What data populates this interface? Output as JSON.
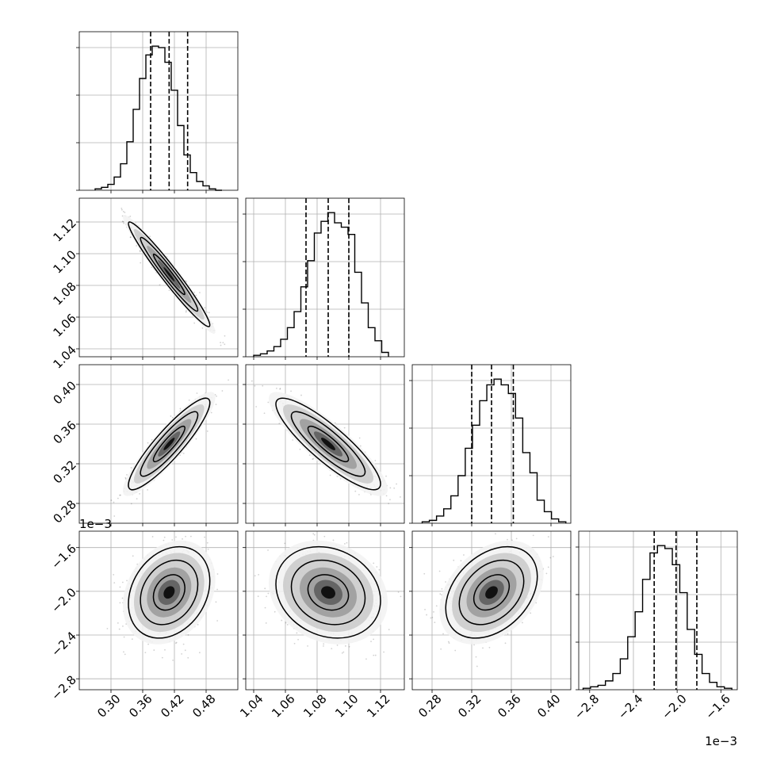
{
  "chart_data": {
    "type": "corner",
    "num_parameters": 4,
    "grid": true,
    "offset_label": "1e−3",
    "parameters": [
      {
        "range": [
          0.24,
          0.54
        ],
        "ticks": [
          0.3,
          0.36,
          0.42,
          0.48
        ],
        "tick_labels": [
          "0.30",
          "0.36",
          "0.42",
          "0.48"
        ],
        "quantiles": [
          0.375,
          0.41,
          0.445
        ],
        "hist_range": [
          0.27,
          0.51
        ],
        "hist_counts": [
          1,
          2,
          4,
          9,
          18,
          33,
          55,
          76,
          92,
          98,
          97,
          87,
          68,
          44,
          24,
          12,
          6,
          3,
          1,
          0
        ]
      },
      {
        "range": [
          1.035,
          1.135
        ],
        "ticks": [
          1.04,
          1.06,
          1.08,
          1.1,
          1.12
        ],
        "tick_labels": [
          "1.04",
          "1.06",
          "1.08",
          "1.10",
          "1.12"
        ],
        "quantiles": [
          1.073,
          1.087,
          1.1
        ],
        "hist_range": [
          1.04,
          1.125
        ],
        "hist_counts": [
          1,
          2,
          4,
          7,
          12,
          20,
          31,
          48,
          66,
          85,
          93,
          99,
          92,
          89,
          84,
          58,
          37,
          20,
          11,
          3
        ]
      },
      {
        "range": [
          0.26,
          0.42
        ],
        "ticks": [
          0.28,
          0.32,
          0.36,
          0.4
        ],
        "tick_labels": [
          "0.28",
          "0.32",
          "0.36",
          "0.40"
        ],
        "quantiles": [
          0.32,
          0.34,
          0.362
        ],
        "hist_range": [
          0.27,
          0.415
        ],
        "hist_counts": [
          1,
          2,
          5,
          10,
          19,
          33,
          52,
          68,
          85,
          96,
          100,
          96,
          90,
          73,
          49,
          35,
          16,
          8,
          3,
          1
        ]
      },
      {
        "range": [
          -2.9,
          -1.45
        ],
        "ticks": [
          -2.8,
          -2.4,
          -2.0,
          -1.6
        ],
        "tick_labels": [
          "−2.8",
          "−2.4",
          "−2.0",
          "−1.6"
        ],
        "quantiles": [
          -2.21,
          -2.01,
          -1.82
        ],
        "hist_range": [
          -2.86,
          -1.5
        ],
        "hist_counts": [
          1,
          2,
          3,
          6,
          11,
          21,
          36,
          53,
          75,
          93,
          98,
          96,
          85,
          66,
          41,
          24,
          11,
          5,
          2,
          1
        ],
        "offset_label": "1e−3"
      }
    ],
    "pairs": [
      {
        "row": 1,
        "col": 0,
        "mean": [
          0.41,
          1.087
        ],
        "sd": [
          0.035,
          0.015
        ],
        "corr": -0.97
      },
      {
        "row": 2,
        "col": 0,
        "mean": [
          0.41,
          0.34
        ],
        "sd": [
          0.035,
          0.021
        ],
        "corr": 0.9
      },
      {
        "row": 2,
        "col": 1,
        "mean": [
          1.087,
          0.34
        ],
        "sd": [
          0.015,
          0.021
        ],
        "corr": -0.87
      },
      {
        "row": 3,
        "col": 0,
        "mean": [
          0.41,
          -2.01
        ],
        "sd": [
          0.035,
          0.19
        ],
        "corr": 0.25
      },
      {
        "row": 3,
        "col": 1,
        "mean": [
          1.087,
          -2.01
        ],
        "sd": [
          0.015,
          0.19
        ],
        "corr": -0.18
      },
      {
        "row": 3,
        "col": 2,
        "mean": [
          0.34,
          -2.01
        ],
        "sd": [
          0.021,
          0.19
        ],
        "corr": 0.35
      }
    ]
  }
}
